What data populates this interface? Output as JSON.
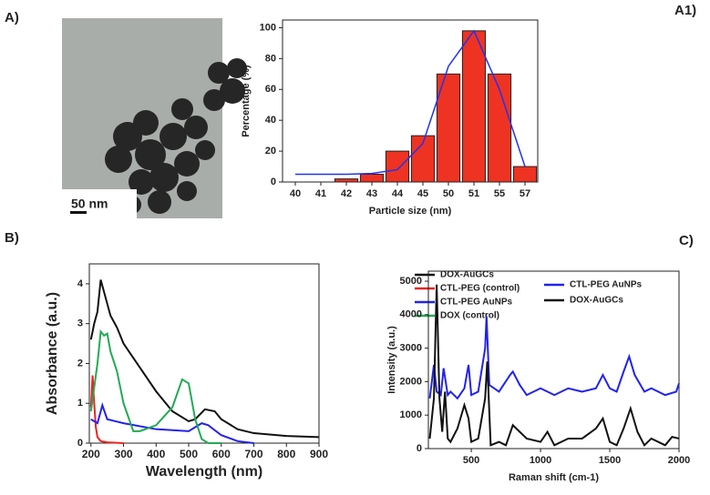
{
  "image": {
    "panel": "A)",
    "scale_bar": "50 nm"
  },
  "chart_data": [
    {
      "type": "bar",
      "panel": "A1)",
      "xlabel": "Particle size (nm)",
      "ylabel": "Percentage (%)",
      "categories": [
        "40",
        "41",
        "42",
        "43",
        "44",
        "45",
        "50",
        "51",
        "55",
        "57"
      ],
      "values": [
        null,
        null,
        2,
        5,
        20,
        30,
        70,
        98,
        70,
        10
      ],
      "color": "#ee3322",
      "fit_values": [
        5,
        5,
        5,
        5.5,
        8,
        25,
        75,
        98,
        60,
        10
      ],
      "fit_color": "#2233ee",
      "ylim": [
        0,
        105
      ],
      "yticks": [
        0,
        20,
        40,
        60,
        80,
        100
      ]
    },
    {
      "type": "line",
      "panel": "B)",
      "xlabel": "Wavelength (nm)",
      "ylabel": "Absorbance (a.u.)",
      "xlim": [
        195,
        900
      ],
      "xticks": [
        200,
        300,
        400,
        500,
        600,
        700,
        800,
        900
      ],
      "ylim": [
        0,
        4.5
      ],
      "yticks": [
        0,
        1,
        2,
        3,
        4
      ],
      "series": [
        {
          "name": "DOX-AuGCs",
          "color": "#111111",
          "x": [
            200,
            210,
            220,
            230,
            240,
            260,
            280,
            300,
            350,
            400,
            450,
            500,
            520,
            550,
            580,
            600,
            650,
            700,
            800,
            900
          ],
          "values": [
            2.6,
            3.0,
            3.3,
            4.1,
            3.8,
            3.2,
            2.9,
            2.5,
            1.9,
            1.3,
            0.8,
            0.55,
            0.6,
            0.85,
            0.8,
            0.6,
            0.35,
            0.25,
            0.18,
            0.15
          ]
        },
        {
          "name": "CTL-PEG (control)",
          "color": "#ee2222",
          "x": [
            200,
            205,
            210,
            215,
            220,
            230,
            250,
            300
          ],
          "values": [
            0.9,
            1.7,
            1.0,
            0.4,
            0.15,
            0.05,
            0.02,
            0.0
          ]
        },
        {
          "name": "CTL-PEG AuNPs",
          "color": "#2222ee",
          "x": [
            200,
            220,
            235,
            250,
            300,
            400,
            500,
            540,
            560,
            600,
            650,
            700
          ],
          "values": [
            0.6,
            0.5,
            0.95,
            0.6,
            0.5,
            0.35,
            0.3,
            0.5,
            0.45,
            0.2,
            0.05,
            0.0
          ]
        },
        {
          "name": "DOX (control)",
          "color": "#22aa55",
          "x": [
            200,
            220,
            230,
            240,
            250,
            260,
            280,
            300,
            330,
            350,
            400,
            450,
            480,
            500,
            520,
            540,
            560,
            600
          ],
          "values": [
            0.8,
            2.0,
            2.8,
            2.7,
            2.75,
            2.3,
            1.8,
            1.0,
            0.3,
            0.3,
            0.45,
            0.9,
            1.6,
            1.5,
            0.6,
            0.1,
            0.0,
            0.0
          ]
        }
      ]
    },
    {
      "type": "line",
      "panel": "C)",
      "xlabel": "Raman shift (cm-1)",
      "ylabel": "Intensity (a.u.)",
      "xlim": [
        190,
        2000
      ],
      "xticks": [
        500,
        1000,
        1500,
        2000
      ],
      "ylim": [
        0,
        5300
      ],
      "yticks": [
        0,
        1000,
        2000,
        3000,
        4000,
        5000
      ],
      "series": [
        {
          "name": "CTL-PEG AuNPs",
          "color": "#2222ee",
          "x": [
            200,
            230,
            250,
            280,
            300,
            330,
            350,
            400,
            450,
            480,
            500,
            550,
            600,
            610,
            630,
            700,
            780,
            800,
            850,
            900,
            1000,
            1100,
            1200,
            1300,
            1400,
            1450,
            1500,
            1550,
            1600,
            1640,
            1680,
            1750,
            1800,
            1900,
            1980,
            2000
          ],
          "values": [
            1500,
            2500,
            1700,
            1600,
            2400,
            1600,
            1700,
            1500,
            1800,
            2500,
            1600,
            1700,
            3000,
            3950,
            1900,
            1700,
            2200,
            2300,
            1900,
            1600,
            1800,
            1600,
            1800,
            1700,
            1800,
            2200,
            1800,
            1700,
            2300,
            2750,
            2200,
            1700,
            1800,
            1600,
            1700,
            1950
          ]
        },
        {
          "name": "DOX-AuGCs",
          "color": "#111111",
          "x": [
            200,
            230,
            250,
            270,
            290,
            310,
            330,
            350,
            400,
            450,
            480,
            500,
            550,
            600,
            615,
            640,
            700,
            750,
            800,
            850,
            900,
            1000,
            1050,
            1100,
            1200,
            1300,
            1400,
            1450,
            1500,
            1550,
            1600,
            1650,
            1700,
            1750,
            1800,
            1900,
            1950,
            2000
          ],
          "values": [
            300,
            1500,
            4900,
            1500,
            500,
            1700,
            300,
            200,
            600,
            1300,
            900,
            200,
            300,
            1500,
            2600,
            100,
            200,
            100,
            700,
            500,
            300,
            200,
            500,
            100,
            300,
            300,
            600,
            900,
            200,
            100,
            600,
            1200,
            500,
            100,
            300,
            100,
            350,
            300
          ]
        }
      ]
    }
  ]
}
